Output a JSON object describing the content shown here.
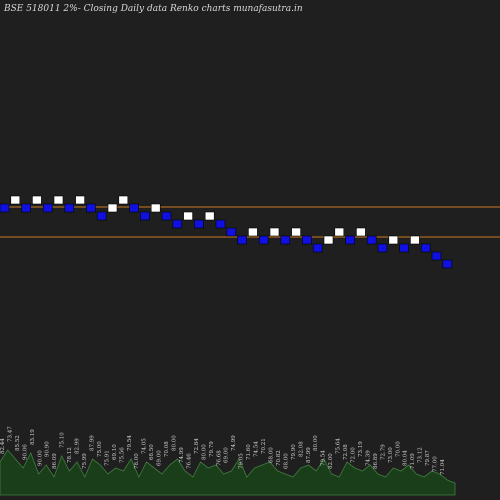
{
  "title": "BSE 518011 2%-  Closing Daily data  Renko  charts munafasutra.in",
  "colors": {
    "background": "#1f1f1f",
    "up_brick": "#ffffff",
    "down_brick": "#1010e0",
    "brick_border": "#000000",
    "level_line": "#c87820",
    "volume_fill": "#1a3d1a",
    "volume_edge": "#3f7f3f",
    "label_text": "#d0d0d0"
  },
  "chart_data": {
    "type": "renko",
    "brick_size_percent": 2,
    "grid": false,
    "bricks": [
      {
        "dir": "down",
        "level": 0
      },
      {
        "dir": "up",
        "level": 1
      },
      {
        "dir": "down",
        "level": 0
      },
      {
        "dir": "up",
        "level": 1
      },
      {
        "dir": "down",
        "level": 0
      },
      {
        "dir": "up",
        "level": 1
      },
      {
        "dir": "down",
        "level": 0
      },
      {
        "dir": "up",
        "level": 1
      },
      {
        "dir": "down",
        "level": 0
      },
      {
        "dir": "down",
        "level": -1
      },
      {
        "dir": "up",
        "level": 0
      },
      {
        "dir": "up",
        "level": 1
      },
      {
        "dir": "down",
        "level": 0
      },
      {
        "dir": "down",
        "level": -1
      },
      {
        "dir": "up",
        "level": 0
      },
      {
        "dir": "down",
        "level": -1
      },
      {
        "dir": "down",
        "level": -2
      },
      {
        "dir": "up",
        "level": -1
      },
      {
        "dir": "down",
        "level": -2
      },
      {
        "dir": "up",
        "level": -1
      },
      {
        "dir": "down",
        "level": -2
      },
      {
        "dir": "down",
        "level": -3
      },
      {
        "dir": "down",
        "level": -4
      },
      {
        "dir": "up",
        "level": -3
      },
      {
        "dir": "down",
        "level": -4
      },
      {
        "dir": "up",
        "level": -3
      },
      {
        "dir": "down",
        "level": -4
      },
      {
        "dir": "up",
        "level": -3
      },
      {
        "dir": "down",
        "level": -4
      },
      {
        "dir": "down",
        "level": -5
      },
      {
        "dir": "up",
        "level": -4
      },
      {
        "dir": "up",
        "level": -3
      },
      {
        "dir": "down",
        "level": -4
      },
      {
        "dir": "up",
        "level": -3
      },
      {
        "dir": "down",
        "level": -4
      },
      {
        "dir": "down",
        "level": -5
      },
      {
        "dir": "up",
        "level": -4
      },
      {
        "dir": "down",
        "level": -5
      },
      {
        "dir": "up",
        "level": -4
      },
      {
        "dir": "down",
        "level": -5
      },
      {
        "dir": "down",
        "level": -6
      },
      {
        "dir": "down",
        "level": -7
      }
    ],
    "level_lines": [
      {
        "label": "upper"
      },
      {
        "label": "lower"
      }
    ],
    "volume_labels": [
      "82.44",
      "73.47",
      "85.52",
      "90.06",
      "83.19",
      "90.00",
      "90.90",
      "86.09",
      "75.10",
      "78.12",
      "82.99",
      "75.99",
      "87.99",
      "75.00",
      "75.91",
      "69.10",
      "75.56",
      "79.54",
      "78.00",
      "74.05",
      "68.50",
      "69.00",
      "70.08",
      "80.00",
      "74.99",
      "76.46",
      "72.84",
      "80.00",
      "79.79",
      "76.68",
      "69.00",
      "74.99",
      "79.05",
      "71.60",
      "74.54",
      "70.21",
      "68.00",
      "70.82",
      "68.00",
      "79.90",
      "82.08",
      "87.99",
      "80.00",
      "79.54",
      "82.00",
      "75.64",
      "72.08",
      "72.00",
      "73.19",
      "74.39",
      "86.89",
      "72.79",
      "73.00",
      "70.00",
      "80.04",
      "71.09",
      "73.12",
      "79.87",
      "77.00",
      "71.04"
    ],
    "volume_bars": [
      0.55,
      0.75,
      0.6,
      0.45,
      0.7,
      0.35,
      0.5,
      0.3,
      0.65,
      0.4,
      0.55,
      0.3,
      0.6,
      0.5,
      0.35,
      0.45,
      0.4,
      0.6,
      0.3,
      0.55,
      0.45,
      0.35,
      0.5,
      0.6,
      0.4,
      0.3,
      0.55,
      0.45,
      0.5,
      0.35,
      0.4,
      0.6,
      0.3,
      0.45,
      0.5,
      0.55,
      0.4,
      0.35,
      0.3,
      0.45,
      0.5,
      0.4,
      0.6,
      0.35,
      0.3,
      0.55,
      0.45,
      0.4,
      0.5,
      0.35,
      0.3,
      0.45,
      0.4,
      0.5,
      0.35,
      0.3,
      0.4,
      0.35,
      0.25,
      0.2
    ]
  }
}
